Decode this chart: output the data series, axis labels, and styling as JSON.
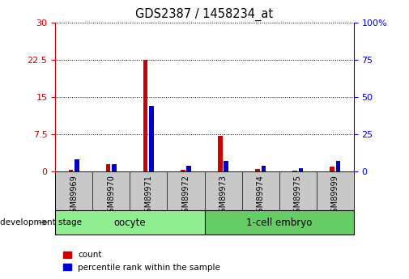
{
  "title": "GDS2387 / 1458234_at",
  "samples": [
    "GSM89969",
    "GSM89970",
    "GSM89971",
    "GSM89972",
    "GSM89973",
    "GSM89974",
    "GSM89975",
    "GSM89999"
  ],
  "count_values": [
    0.3,
    1.5,
    22.5,
    0.3,
    7.2,
    0.5,
    0.2,
    1.0
  ],
  "percentile_values": [
    8,
    5,
    44,
    4,
    7,
    4,
    2,
    7
  ],
  "groups": [
    {
      "label": "oocyte",
      "start": 0,
      "end": 4,
      "color": "#90ee90"
    },
    {
      "label": "1-cell embryo",
      "start": 4,
      "end": 8,
      "color": "#66cc66"
    }
  ],
  "ylim_left": [
    0,
    30
  ],
  "ylim_right": [
    0,
    100
  ],
  "yticks_left": [
    0,
    7.5,
    15,
    22.5,
    30
  ],
  "yticks_right": [
    0,
    25,
    50,
    75,
    100
  ],
  "bar_width": 0.12,
  "bar_gap": 0.04,
  "count_color": "#cc0000",
  "percentile_color": "#0000cc",
  "left_axis_color": "#cc0000",
  "right_axis_color": "#0000cc",
  "grid_color": "black",
  "background_color": "#ffffff",
  "plot_bg_color": "#ffffff",
  "label_area_color": "#c8c8c8",
  "legend_count_label": "count",
  "legend_percentile_label": "percentile rank within the sample",
  "development_stage_label": "development stage"
}
